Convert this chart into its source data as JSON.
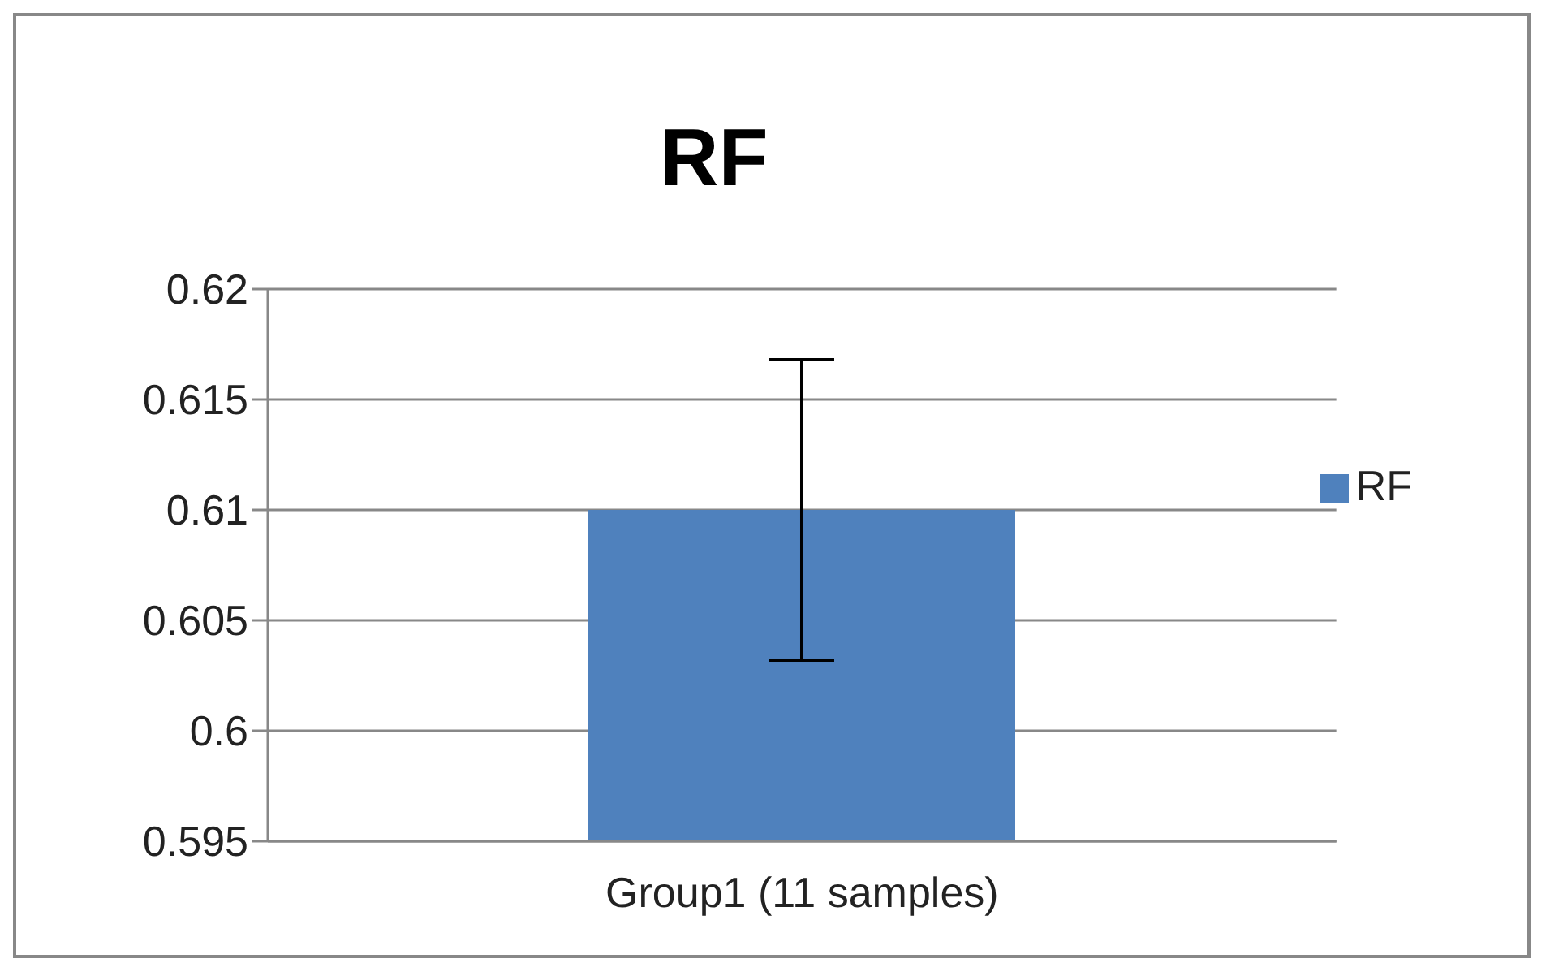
{
  "chart_data": {
    "type": "bar",
    "title": "RF",
    "categories": [
      "Group1 (11 samples)"
    ],
    "series": [
      {
        "name": "RF",
        "color": "#4f81bd",
        "values": [
          0.61
        ],
        "errors": [
          0.0068
        ]
      }
    ],
    "ylim": [
      0.595,
      0.62
    ],
    "yticks": [
      0.595,
      0.6,
      0.605,
      0.61,
      0.615,
      0.62
    ],
    "grid": "y",
    "legend": "right"
  }
}
